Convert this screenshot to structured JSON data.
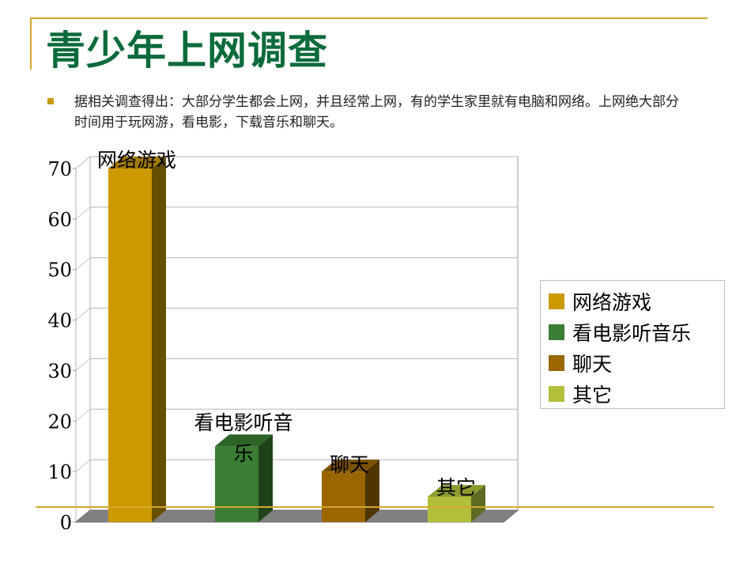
{
  "slide": {
    "title": "青少年上网调查",
    "bullet": "据相关调查得出：大部分学生都会上网，并且经常上网，有的学生家里就有电脑和网络。上网绝大部分时间用于玩网游，看电影，下载音乐和聊天。"
  },
  "colors": {
    "rule": "#d4a82a",
    "title": "#0b6b3a",
    "bullet": "#c99a12"
  },
  "chart_data": {
    "type": "bar",
    "style": "3d-column",
    "title": "",
    "xlabel": "",
    "ylabel": "",
    "categories": [
      "网络游戏",
      "看电影听音乐",
      "聊天",
      "其它"
    ],
    "values": [
      70,
      15,
      10,
      5
    ],
    "ylim": [
      0,
      70
    ],
    "yticks": [
      "0",
      "10",
      "20",
      "30",
      "40",
      "50",
      "60",
      "70"
    ],
    "grid": true,
    "legend_position": "right",
    "data_labels": [
      "网络游戏",
      "看电影听音乐",
      "聊天",
      "其它"
    ],
    "series_colors": [
      "#cc9900",
      "#3a7d33",
      "#996600",
      "#b2bf3a"
    ],
    "series_side_colors": [
      "#665000",
      "#1f421b",
      "#4f3500",
      "#5c6a22"
    ],
    "series_top_colors": [
      "#a37a00",
      "#2d6527",
      "#7a5200",
      "#8d9a2e"
    ]
  },
  "legend": {
    "items": [
      {
        "label": "网络游戏",
        "color": "#cc9900"
      },
      {
        "label": "看电影听音乐",
        "color": "#3a7d33"
      },
      {
        "label": "聊天",
        "color": "#996600"
      },
      {
        "label": "其它",
        "color": "#b2bf3a"
      }
    ]
  }
}
